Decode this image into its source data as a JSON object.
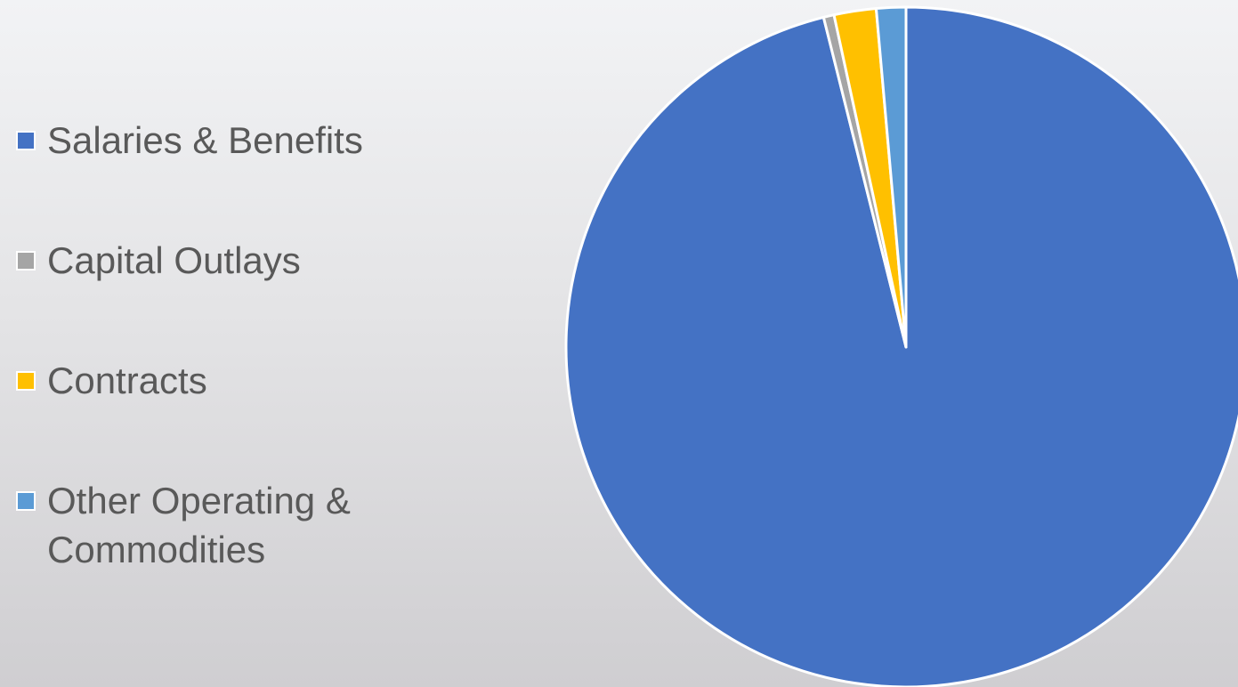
{
  "chart_data": {
    "type": "pie",
    "title": "",
    "legend_position": "left",
    "slices": [
      {
        "label": "Salaries & Benefits",
        "value": 96.1,
        "color": "#4472c4"
      },
      {
        "label": "Capital Outlays",
        "value": 0.5,
        "color": "#a5a5a5"
      },
      {
        "label": "Contracts",
        "value": 2.0,
        "color": "#ffc000"
      },
      {
        "label": "Other Operating & Commodities",
        "value": 1.4,
        "color": "#5b9bd5"
      }
    ]
  }
}
